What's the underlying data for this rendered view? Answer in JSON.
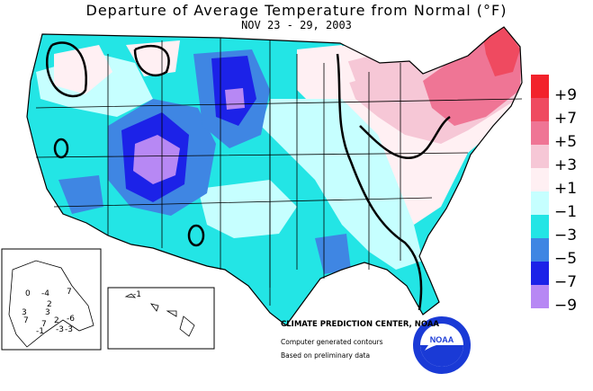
{
  "header": {
    "title": "Departure of Average Temperature from Normal (°F)",
    "subtitle": "NOV 23 - 29, 2003"
  },
  "legend": {
    "items": [
      {
        "label": "+9",
        "color": "#f2222b"
      },
      {
        "label": "+7",
        "color": "#ef4a60"
      },
      {
        "label": "+5",
        "color": "#ef7595"
      },
      {
        "label": "+3",
        "color": "#f6c7d6"
      },
      {
        "label": "+1",
        "color": "#fff0f3"
      },
      {
        "label": "−1",
        "color": "#c6ffff"
      },
      {
        "label": "−3",
        "color": "#23e5e5"
      },
      {
        "label": "−5",
        "color": "#3f86e3"
      },
      {
        "label": "−7",
        "color": "#1c22e8"
      },
      {
        "label": "−9",
        "color": "#b788f4"
      }
    ]
  },
  "alaska_values": [
    "0",
    "-4",
    "2",
    "7",
    "3",
    "7",
    "3",
    "2",
    "-6",
    "7",
    "-1",
    "-3",
    "-3"
  ],
  "hawaii_values": [
    "-1"
  ],
  "credits": {
    "center": "CLIMATE PREDICTION CENTER, NOAA",
    "line1": "Computer generated contours",
    "line2": "Based on preliminary data"
  },
  "logo": {
    "text": "NOAA"
  }
}
